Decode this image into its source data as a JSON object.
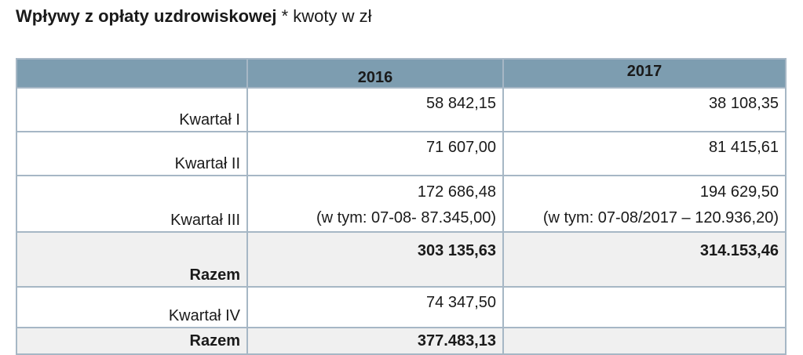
{
  "title": {
    "bold": "Wpływy z opłaty uzdrowiskowej",
    "normal": " * kwoty w zł"
  },
  "table": {
    "headers": [
      "",
      "2016",
      "2017"
    ],
    "rows": [
      {
        "label": "Kwartał I",
        "v2016": "58 842,15",
        "v2017": "38 108,35"
      },
      {
        "label": "Kwartał II",
        "v2016": "71 607,00",
        "v2017": "81 415,61"
      },
      {
        "label": "Kwartał III",
        "v2016": "172 686,48",
        "v2016_note": "(w tym: 07-08- 87.345,00)",
        "v2017": "194 629,50",
        "v2017_note": "(w tym: 07-08/2017 – 120.936,20)"
      },
      {
        "label": "Razem",
        "v2016": "303 135,63",
        "v2017": "314.153,46"
      },
      {
        "label": "Kwartał IV",
        "v2016": "74 347,50",
        "v2017": ""
      },
      {
        "label": "Razem",
        "v2016": "377.483,13",
        "v2017": ""
      }
    ]
  }
}
